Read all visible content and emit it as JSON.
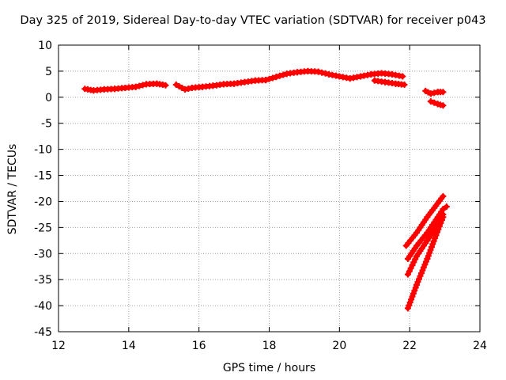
{
  "chart_data": {
    "type": "scatter",
    "title": "Day 325 of 2019, Sidereal Day-to-day VTEC variation (SDTVAR) for receiver p043",
    "xlabel": "GPS time / hours",
    "ylabel": "SDTVAR / TECUs",
    "xlim": [
      12,
      24
    ],
    "ylim": [
      -45,
      10
    ],
    "xticks": [
      12,
      14,
      16,
      18,
      20,
      22,
      24
    ],
    "yticks": [
      10,
      5,
      0,
      -5,
      -10,
      -15,
      -20,
      -25,
      -30,
      -35,
      -40,
      -45
    ],
    "grid": true,
    "legend": "none",
    "marker": "plus",
    "color": "#ff0000",
    "series": [
      {
        "segments": [
          [
            [
              12.75,
              1.6
            ],
            [
              13.0,
              1.3
            ],
            [
              13.3,
              1.5
            ],
            [
              13.6,
              1.6
            ],
            [
              13.9,
              1.8
            ],
            [
              14.2,
              2.0
            ],
            [
              14.5,
              2.5
            ],
            [
              14.8,
              2.6
            ],
            [
              15.05,
              2.3
            ]
          ],
          [
            [
              15.35,
              2.4
            ],
            [
              15.6,
              1.5
            ],
            [
              15.8,
              1.8
            ],
            [
              16.1,
              2.0
            ],
            [
              16.4,
              2.2
            ],
            [
              16.7,
              2.5
            ],
            [
              17.0,
              2.6
            ],
            [
              17.3,
              2.9
            ],
            [
              17.6,
              3.2
            ],
            [
              17.9,
              3.3
            ],
            [
              18.2,
              3.9
            ],
            [
              18.5,
              4.5
            ],
            [
              18.8,
              4.8
            ],
            [
              19.1,
              5.0
            ],
            [
              19.4,
              4.9
            ],
            [
              19.7,
              4.4
            ],
            [
              20.0,
              4.0
            ],
            [
              20.3,
              3.6
            ],
            [
              20.6,
              4.0
            ],
            [
              20.9,
              4.4
            ],
            [
              21.2,
              4.6
            ],
            [
              21.5,
              4.4
            ],
            [
              21.8,
              4.0
            ]
          ],
          [
            [
              21.0,
              3.2
            ],
            [
              21.3,
              2.9
            ],
            [
              21.6,
              2.6
            ],
            [
              21.85,
              2.4
            ]
          ],
          [
            [
              22.45,
              1.2
            ],
            [
              22.6,
              0.7
            ],
            [
              22.8,
              1.0
            ],
            [
              22.95,
              1.0
            ]
          ],
          [
            [
              22.6,
              -0.8
            ],
            [
              22.8,
              -1.3
            ],
            [
              22.95,
              -1.6
            ]
          ],
          [
            [
              21.95,
              -40.5
            ],
            [
              22.2,
              -36.0
            ],
            [
              22.5,
              -31.0
            ],
            [
              22.75,
              -26.5
            ],
            [
              22.95,
              -23.0
            ]
          ],
          [
            [
              21.95,
              -34.0
            ],
            [
              22.2,
              -30.5
            ],
            [
              22.5,
              -27.5
            ],
            [
              22.75,
              -25.0
            ],
            [
              22.95,
              -22.5
            ]
          ],
          [
            [
              21.95,
              -31.0
            ],
            [
              22.2,
              -28.5
            ],
            [
              22.5,
              -26.0
            ],
            [
              22.75,
              -23.5
            ],
            [
              22.95,
              -21.5
            ],
            [
              23.05,
              -21.0
            ]
          ],
          [
            [
              21.9,
              -28.5
            ],
            [
              22.2,
              -26.0
            ],
            [
              22.5,
              -23.0
            ],
            [
              22.75,
              -20.8
            ],
            [
              22.95,
              -19.0
            ]
          ]
        ]
      }
    ]
  }
}
